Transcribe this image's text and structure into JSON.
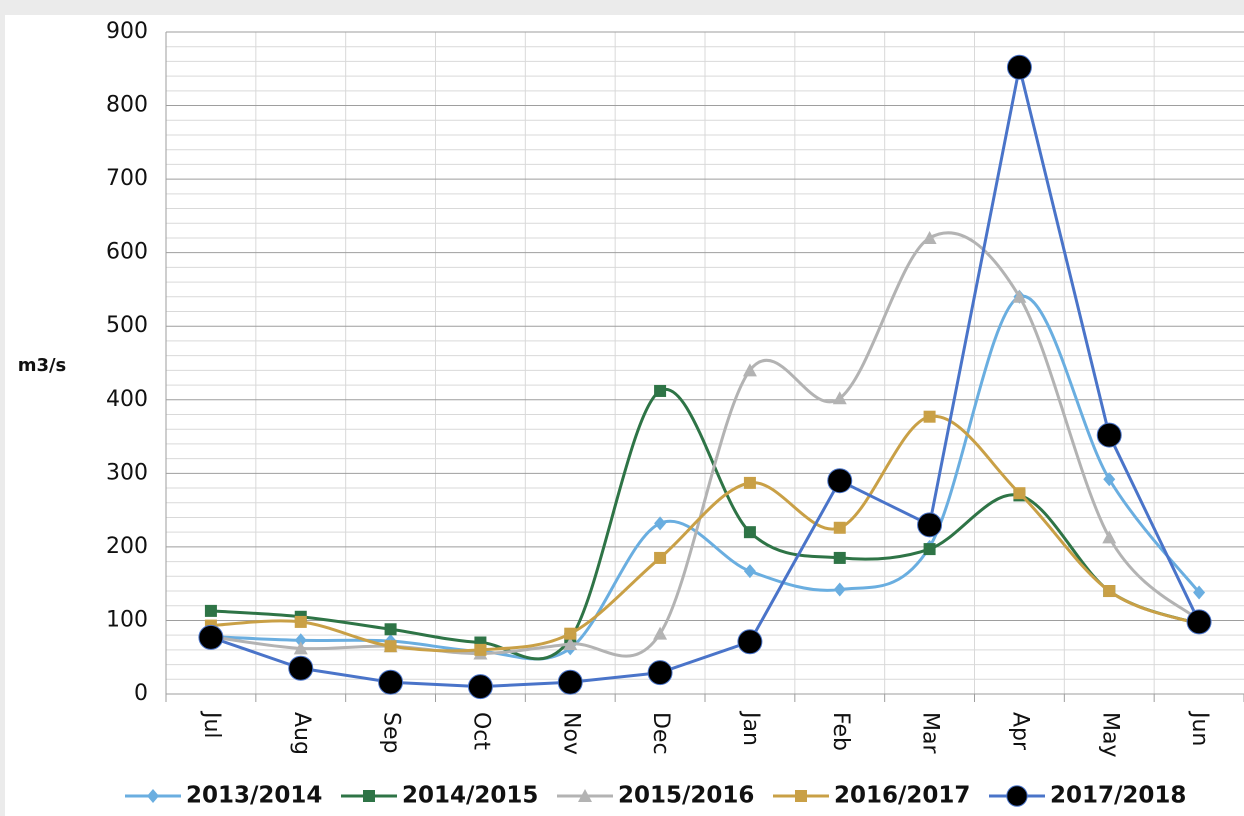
{
  "chart_data": {
    "type": "line",
    "y_label": "m3/s",
    "categories": [
      "Jul",
      "Aug",
      "Sep",
      "Oct",
      "Nov",
      "Dec",
      "Jan",
      "Feb",
      "Mar",
      "Apr",
      "May",
      "Jun"
    ],
    "ylim": [
      0,
      900
    ],
    "yticks": [
      0,
      100,
      200,
      300,
      400,
      500,
      600,
      700,
      800,
      900
    ],
    "grid": true,
    "legend": "bottom",
    "series": [
      {
        "name": "2013/2014",
        "color": "#6aaee0",
        "marker": "diamond",
        "smooth": true,
        "values": [
          78,
          73,
          72,
          58,
          62,
          232,
          167,
          142,
          200,
          540,
          292,
          138
        ]
      },
      {
        "name": "2014/2015",
        "color": "#2e7446",
        "marker": "square",
        "smooth": true,
        "values": [
          113,
          105,
          88,
          70,
          75,
          412,
          220,
          185,
          197,
          270,
          140,
          95
        ]
      },
      {
        "name": "2015/2016",
        "color": "#b3b3b3",
        "marker": "triangle",
        "smooth": true,
        "values": [
          78,
          62,
          65,
          55,
          68,
          82,
          440,
          402,
          620,
          540,
          213,
          100
        ]
      },
      {
        "name": "2016/2017",
        "color": "#c9a046",
        "marker": "square",
        "smooth": true,
        "values": [
          93,
          98,
          65,
          60,
          82,
          185,
          287,
          226,
          377,
          273,
          140,
          95
        ]
      },
      {
        "name": "2017/2018",
        "color": "#4a74c9",
        "marker": "circle",
        "smooth": false,
        "values": [
          77,
          35,
          16,
          10,
          16,
          29,
          71,
          290,
          230,
          852,
          352,
          98
        ]
      }
    ]
  }
}
